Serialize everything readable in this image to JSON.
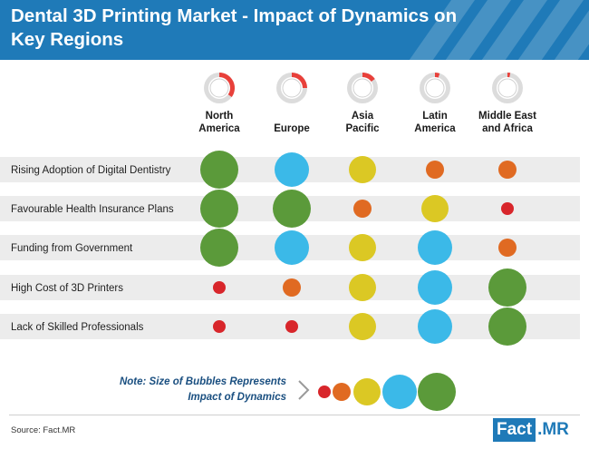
{
  "header": {
    "title": "Dental 3D Printing Market - Impact of Dynamics on Key Regions"
  },
  "chart_data": {
    "type": "bubble-matrix",
    "regions": [
      "North America",
      "Europe",
      "Asia Pacific",
      "Latin America",
      "Middle East and Africa"
    ],
    "region_labels": [
      [
        "North",
        "America"
      ],
      [
        "Europe"
      ],
      [
        "Asia",
        "Pacific"
      ],
      [
        "Latin",
        "America"
      ],
      [
        "Middle East",
        "and Africa"
      ]
    ],
    "region_gauge_levels": [
      0.35,
      0.25,
      0.15,
      0.05,
      0.03
    ],
    "dynamics": [
      "Rising Adoption of Digital Dentistry",
      "Favourable Health Insurance Plans",
      "Funding from Government",
      "High Cost of 3D Printers",
      "Lack of Skilled Professionals"
    ],
    "impact_levels": [
      1,
      2,
      3,
      4,
      5
    ],
    "level_colors": {
      "1": "#d8262b",
      "2": "#e06a22",
      "3": "#dbc824",
      "4": "#3bb9e8",
      "5": "#5b9a3a"
    },
    "values": [
      [
        5,
        4,
        3,
        2,
        2
      ],
      [
        5,
        5,
        2,
        3,
        1
      ],
      [
        5,
        4,
        3,
        4,
        2
      ],
      [
        1,
        2,
        3,
        4,
        5
      ],
      [
        1,
        1,
        3,
        4,
        5
      ]
    ]
  },
  "note": {
    "line1": "Note: Size of Bubbles Represents",
    "line2": "Impact of Dynamics"
  },
  "footer": {
    "source": "Source: Fact.MR",
    "logo_fact": "Fact",
    "logo_dot": ".",
    "logo_mr": "MR"
  }
}
